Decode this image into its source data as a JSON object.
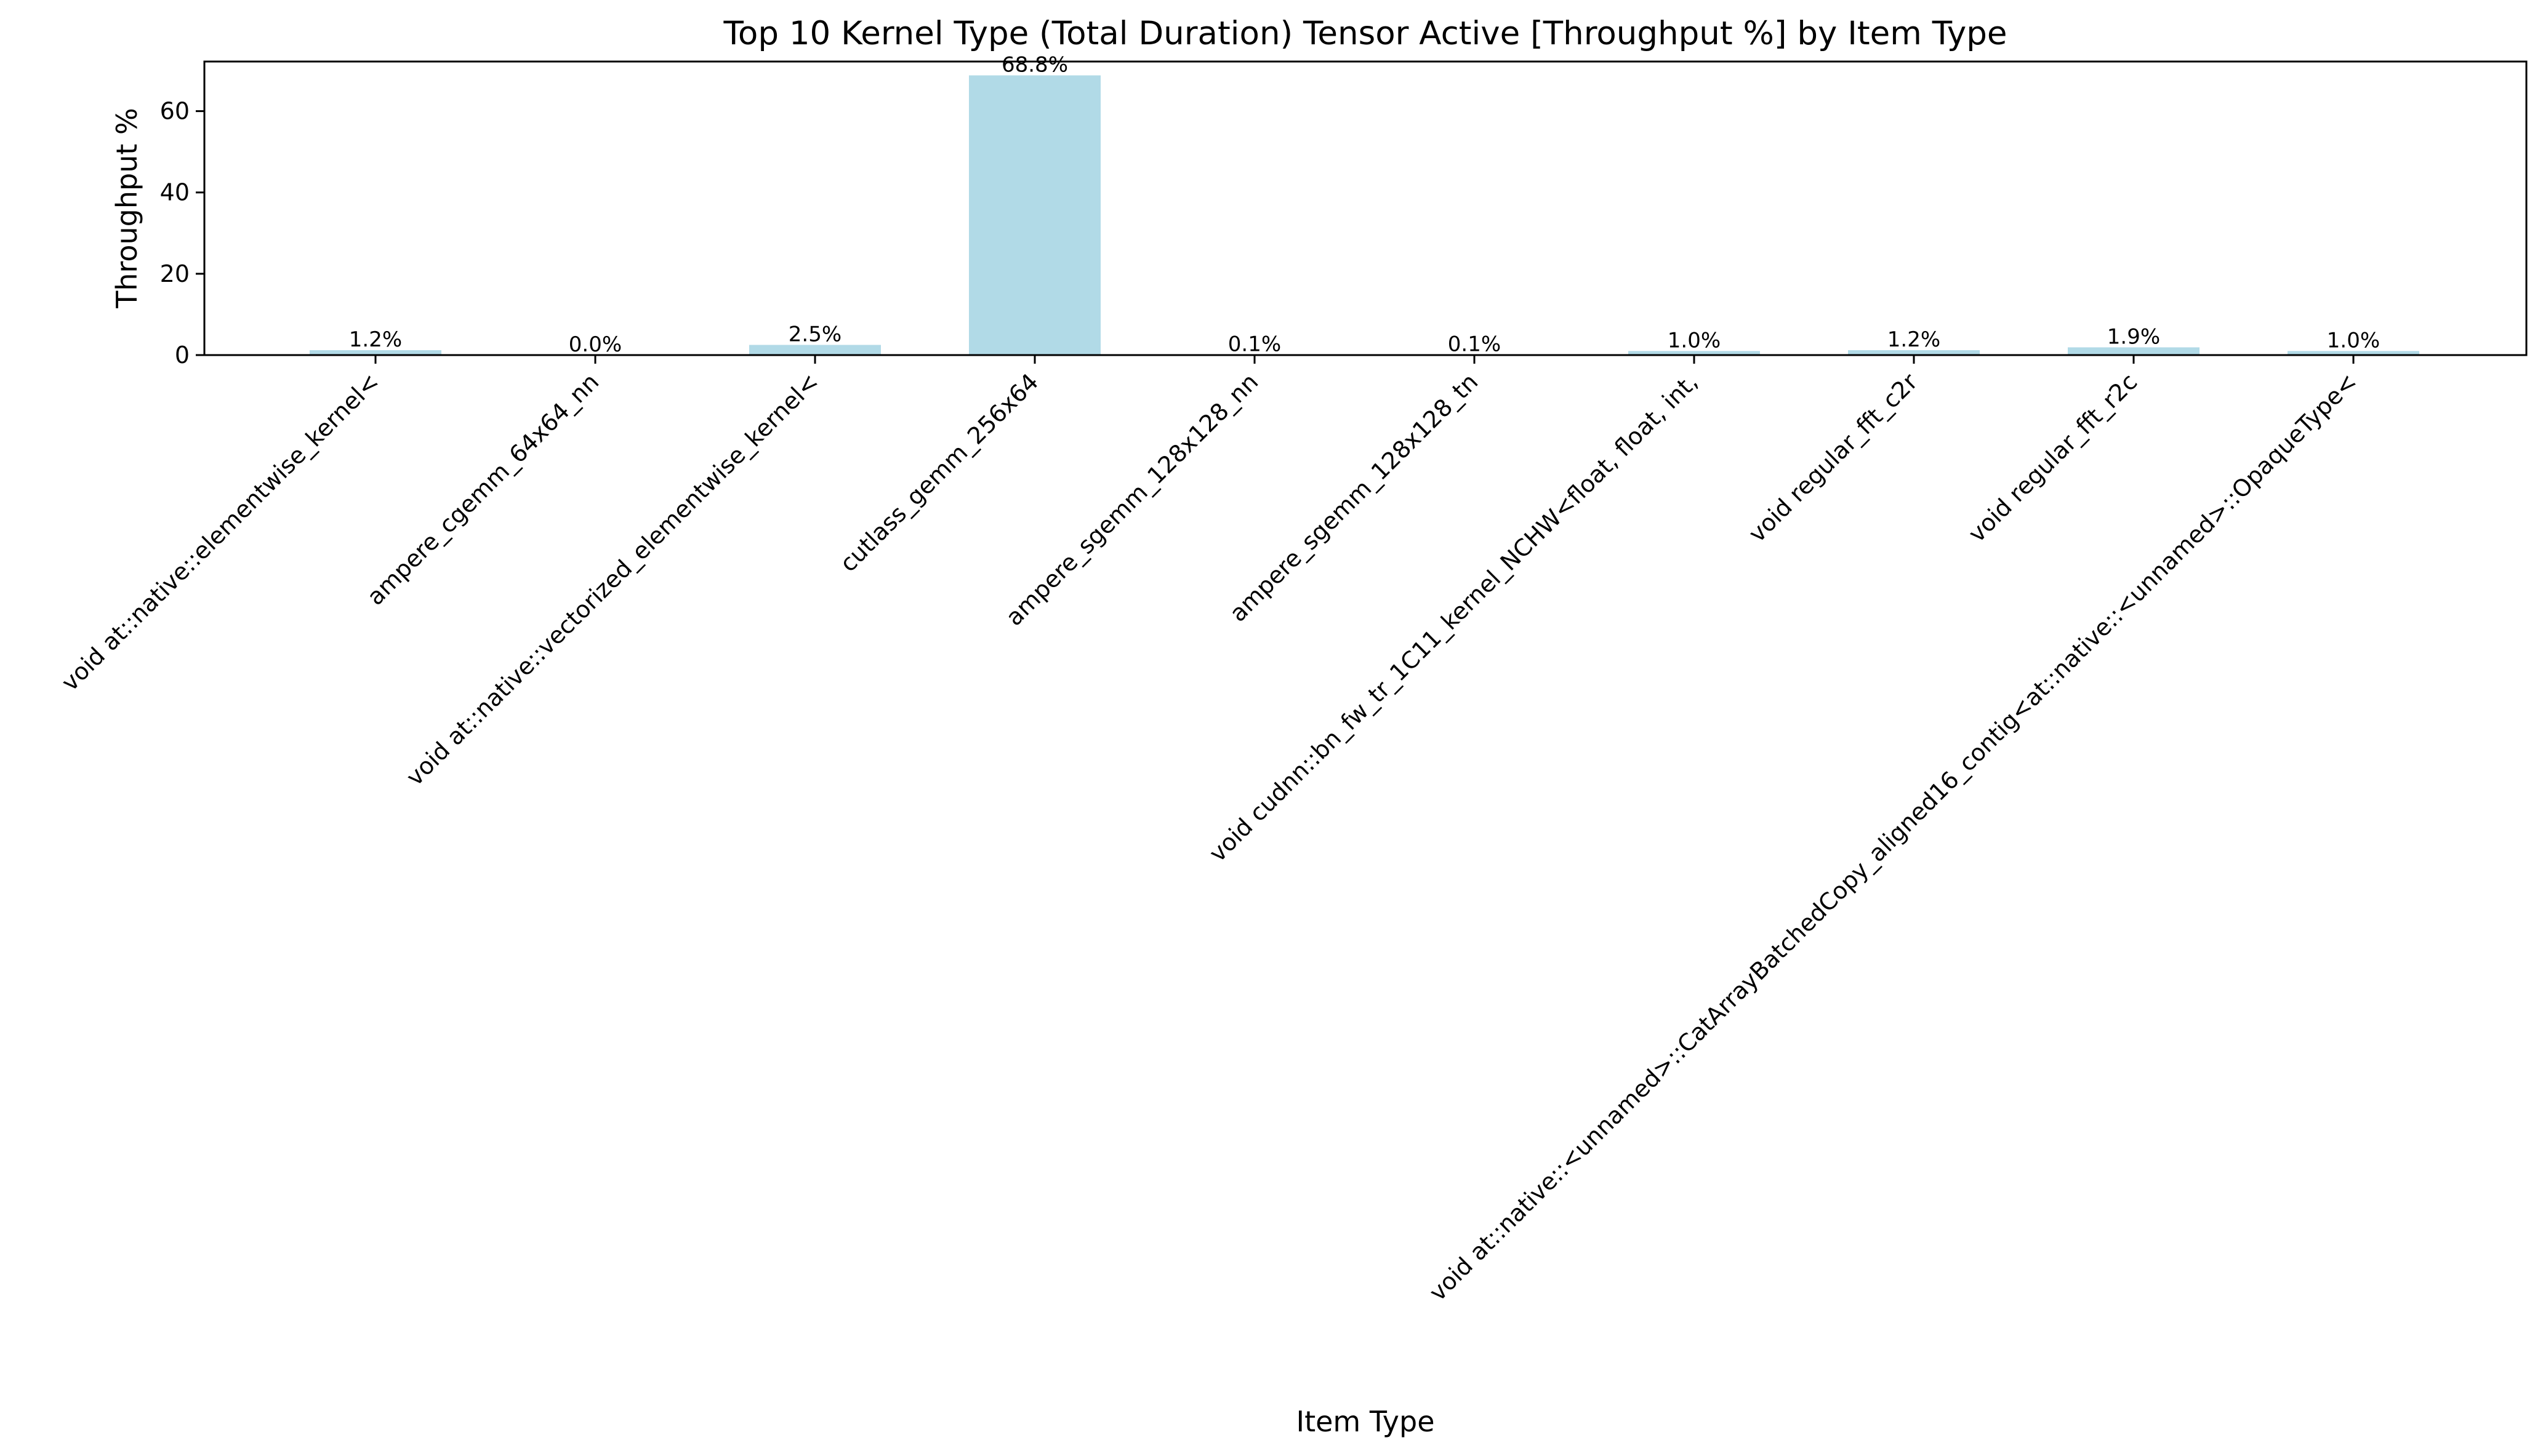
{
  "chart_data": {
    "type": "bar",
    "title": "Top 10 Kernel Type (Total Duration) Tensor Active [Throughput %] by Item Type",
    "xlabel": "Item Type",
    "ylabel": "Throughput %",
    "ylim": [
      0,
      72.2
    ],
    "yticks": [
      0,
      20,
      40,
      60
    ],
    "grid": false,
    "bar_color": "#add8e6",
    "categories": [
      "void at::native::elementwise_kernel<",
      "ampere_cgemm_64x64_nn",
      "void at::native::vectorized_elementwise_kernel<",
      "cutlass_gemm_256x64",
      "ampere_sgemm_128x128_nn",
      "ampere_sgemm_128x128_tn",
      "void cudnn::bn_fw_tr_1C11_kernel_NCHW<float, float, int,",
      "void regular_fft_c2r",
      "void regular_fft_r2c",
      "void at::native::<unnamed>::CatArrayBatchedCopy_aligned16_contig<at::native::<unnamed>::OpaqueType<"
    ],
    "values": [
      1.2,
      0.0,
      2.5,
      68.8,
      0.1,
      0.1,
      1.0,
      1.2,
      1.9,
      1.0
    ],
    "data_labels": [
      "1.2%",
      "0.0%",
      "2.5%",
      "68.8%",
      "0.1%",
      "0.1%",
      "1.0%",
      "1.2%",
      "1.9%",
      "1.0%"
    ]
  }
}
